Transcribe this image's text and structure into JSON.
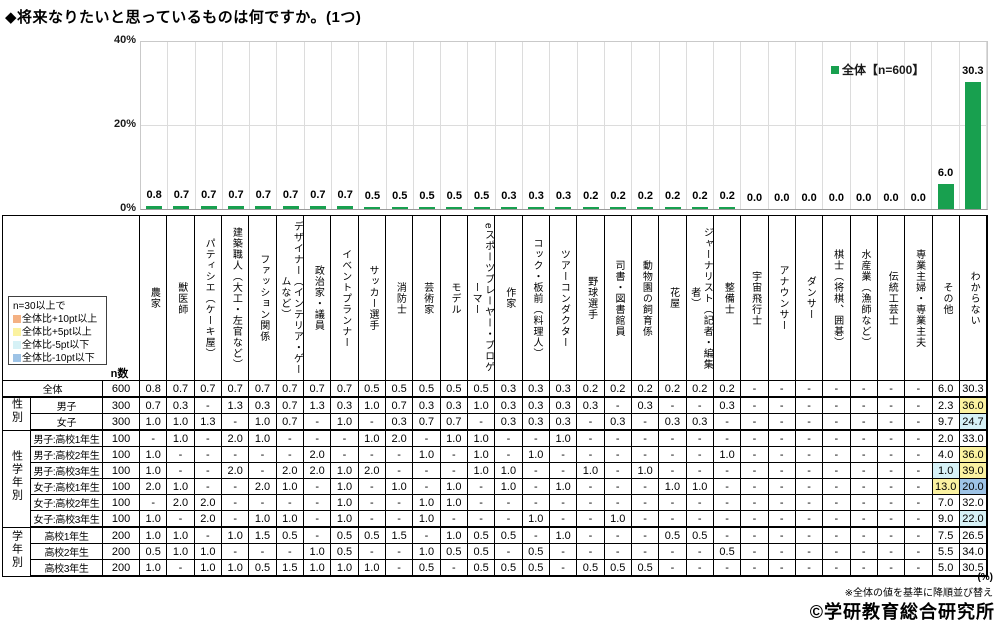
{
  "title": "◆将来なりたいと思っているものは何ですか。(1つ)",
  "chart_data": {
    "type": "bar",
    "title": "将来なりたいと思っているものは何ですか。(1つ)",
    "series_name": "全体【n=600】",
    "bar_color": "#18A04F",
    "ylim": [
      0,
      40
    ],
    "yticks": [
      "40%",
      "20%",
      "0%"
    ],
    "grid": "horizontal at 0/20/40, vertical band separators",
    "legend_position": "top-right",
    "unit": "%",
    "categories": [
      "農家",
      "獣医師",
      "パティシエ（ケーキ屋）",
      "建築職人（大工・左官など）",
      "ファッション関係",
      "デザイナー（インテリア・ゲームなど）",
      "政治家・議員",
      "イベントプランナー",
      "サッカー選手",
      "消防士",
      "芸術家",
      "モデル",
      "eスポーツプレーヤー・プロゲーマー",
      "作家",
      "コック・板前（料理人）",
      "ツアーコンダクター",
      "野球選手",
      "司書・図書館員",
      "動物園の飼育係",
      "花屋",
      "ジャーナリスト（記者・編集者）",
      "整備士",
      "宇宙飛行士",
      "アナウンサー",
      "ダンサー",
      "棋士（将棋、囲碁）",
      "水産業（漁師など）",
      "伝統工芸士",
      "専業主婦・専業主夫",
      "その他",
      "わからない"
    ],
    "values": [
      0.8,
      0.7,
      0.7,
      0.7,
      0.7,
      0.7,
      0.7,
      0.7,
      0.5,
      0.5,
      0.5,
      0.5,
      0.5,
      0.3,
      0.3,
      0.3,
      0.2,
      0.2,
      0.2,
      0.2,
      0.2,
      0.2,
      0.0,
      0.0,
      0.0,
      0.0,
      0.0,
      0.0,
      0.0,
      6.0,
      30.3
    ]
  },
  "legend": {
    "title": "n=30以上で",
    "items": [
      {
        "label": "全体比+10pt以上",
        "color": "#F4B183",
        "key": "p10"
      },
      {
        "label": "全体比+5pt以上",
        "color": "#FBF2A0",
        "key": "p5"
      },
      {
        "label": "全体比-5pt以下",
        "color": "#D6F1F6",
        "key": "m5"
      },
      {
        "label": "全体比-10pt以下",
        "color": "#9DC3E6",
        "key": "m10"
      }
    ]
  },
  "highlight_colors": {
    "p10": "#F4B183",
    "p5": "#FBF2A0",
    "m5": "#D6F1F6",
    "m10": "#9DC3E6"
  },
  "table": {
    "n_header": "n数",
    "groups": [
      {
        "label": "",
        "rows": 1
      },
      {
        "label": "性別",
        "rows": 2
      },
      {
        "label": "性学年別",
        "rows": 6
      },
      {
        "label": "学年別",
        "rows": 3
      }
    ],
    "rows": [
      {
        "label": "全体",
        "n": "600",
        "values": [
          "0.8",
          "0.7",
          "0.7",
          "0.7",
          "0.7",
          "0.7",
          "0.7",
          "0.7",
          "0.5",
          "0.5",
          "0.5",
          "0.5",
          "0.5",
          "0.3",
          "0.3",
          "0.3",
          "0.2",
          "0.2",
          "0.2",
          "0.2",
          "0.2",
          "0.2",
          "-",
          "-",
          "-",
          "-",
          "-",
          "-",
          "-",
          "6.0",
          "30.3"
        ],
        "highlights": {}
      },
      {
        "label": "男子",
        "n": "300",
        "values": [
          "0.7",
          "0.3",
          "-",
          "1.3",
          "0.3",
          "0.7",
          "1.3",
          "0.3",
          "1.0",
          "0.7",
          "0.3",
          "0.3",
          "1.0",
          "0.3",
          "0.3",
          "0.3",
          "0.3",
          "-",
          "0.3",
          "-",
          "-",
          "0.3",
          "-",
          "-",
          "-",
          "-",
          "-",
          "-",
          "-",
          "2.3",
          "36.0"
        ],
        "highlights": {
          "30": "p5"
        }
      },
      {
        "label": "女子",
        "n": "300",
        "values": [
          "1.0",
          "1.0",
          "1.3",
          "-",
          "1.0",
          "0.7",
          "-",
          "1.0",
          "-",
          "0.3",
          "0.7",
          "0.7",
          "-",
          "0.3",
          "0.3",
          "0.3",
          "-",
          "0.3",
          "-",
          "0.3",
          "0.3",
          "-",
          "-",
          "-",
          "-",
          "-",
          "-",
          "-",
          "-",
          "9.7",
          "24.7"
        ],
        "highlights": {
          "30": "m5"
        }
      },
      {
        "label": "男子:高校1年生",
        "n": "100",
        "values": [
          "-",
          "1.0",
          "-",
          "2.0",
          "1.0",
          "-",
          "-",
          "-",
          "1.0",
          "2.0",
          "-",
          "1.0",
          "1.0",
          "-",
          "-",
          "1.0",
          "-",
          "-",
          "-",
          "-",
          "-",
          "-",
          "-",
          "-",
          "-",
          "-",
          "-",
          "-",
          "-",
          "2.0",
          "33.0"
        ],
        "highlights": {}
      },
      {
        "label": "男子:高校2年生",
        "n": "100",
        "values": [
          "1.0",
          "-",
          "-",
          "-",
          "-",
          "-",
          "2.0",
          "-",
          "-",
          "-",
          "1.0",
          "-",
          "1.0",
          "-",
          "1.0",
          "-",
          "-",
          "-",
          "-",
          "-",
          "-",
          "1.0",
          "-",
          "-",
          "-",
          "-",
          "-",
          "-",
          "-",
          "4.0",
          "36.0"
        ],
        "highlights": {
          "30": "p5"
        }
      },
      {
        "label": "男子:高校3年生",
        "n": "100",
        "values": [
          "1.0",
          "-",
          "-",
          "2.0",
          "-",
          "2.0",
          "2.0",
          "1.0",
          "2.0",
          "-",
          "-",
          "-",
          "1.0",
          "1.0",
          "-",
          "-",
          "1.0",
          "-",
          "1.0",
          "-",
          "-",
          "-",
          "-",
          "-",
          "-",
          "-",
          "-",
          "-",
          "-",
          "1.0",
          "39.0"
        ],
        "highlights": {
          "29": "m5",
          "30": "p5"
        }
      },
      {
        "label": "女子:高校1年生",
        "n": "100",
        "values": [
          "2.0",
          "1.0",
          "-",
          "-",
          "2.0",
          "1.0",
          "-",
          "1.0",
          "-",
          "1.0",
          "-",
          "1.0",
          "-",
          "1.0",
          "-",
          "1.0",
          "-",
          "-",
          "-",
          "1.0",
          "1.0",
          "-",
          "-",
          "-",
          "-",
          "-",
          "-",
          "-",
          "-",
          "13.0",
          "20.0"
        ],
        "highlights": {
          "29": "p5",
          "30": "m10"
        }
      },
      {
        "label": "女子:高校2年生",
        "n": "100",
        "values": [
          "-",
          "2.0",
          "2.0",
          "-",
          "-",
          "-",
          "-",
          "1.0",
          "-",
          "-",
          "1.0",
          "1.0",
          "-",
          "-",
          "-",
          "-",
          "-",
          "-",
          "-",
          "-",
          "-",
          "-",
          "-",
          "-",
          "-",
          "-",
          "-",
          "-",
          "-",
          "7.0",
          "32.0"
        ],
        "highlights": {}
      },
      {
        "label": "女子:高校3年生",
        "n": "100",
        "values": [
          "1.0",
          "-",
          "2.0",
          "-",
          "1.0",
          "1.0",
          "-",
          "1.0",
          "-",
          "-",
          "1.0",
          "-",
          "-",
          "-",
          "1.0",
          "-",
          "-",
          "1.0",
          "-",
          "-",
          "-",
          "-",
          "-",
          "-",
          "-",
          "-",
          "-",
          "-",
          "-",
          "9.0",
          "22.0"
        ],
        "highlights": {
          "30": "m5"
        }
      },
      {
        "label": "高校1年生",
        "n": "200",
        "values": [
          "1.0",
          "1.0",
          "-",
          "1.0",
          "1.5",
          "0.5",
          "-",
          "0.5",
          "0.5",
          "1.5",
          "-",
          "1.0",
          "0.5",
          "0.5",
          "-",
          "1.0",
          "-",
          "-",
          "-",
          "0.5",
          "0.5",
          "-",
          "-",
          "-",
          "-",
          "-",
          "-",
          "-",
          "-",
          "7.5",
          "26.5"
        ],
        "highlights": {}
      },
      {
        "label": "高校2年生",
        "n": "200",
        "values": [
          "0.5",
          "1.0",
          "1.0",
          "-",
          "-",
          "-",
          "1.0",
          "0.5",
          "-",
          "-",
          "1.0",
          "0.5",
          "0.5",
          "-",
          "0.5",
          "-",
          "-",
          "-",
          "-",
          "-",
          "-",
          "0.5",
          "-",
          "-",
          "-",
          "-",
          "-",
          "-",
          "-",
          "5.5",
          "34.0"
        ],
        "highlights": {}
      },
      {
        "label": "高校3年生",
        "n": "200",
        "values": [
          "1.0",
          "-",
          "1.0",
          "1.0",
          "0.5",
          "1.5",
          "1.0",
          "1.0",
          "1.0",
          "-",
          "0.5",
          "-",
          "0.5",
          "0.5",
          "0.5",
          "-",
          "0.5",
          "0.5",
          "0.5",
          "-",
          "-",
          "-",
          "-",
          "-",
          "-",
          "-",
          "-",
          "-",
          "-",
          "5.0",
          "30.5"
        ],
        "highlights": {}
      }
    ]
  },
  "footer": {
    "percent_note": "(%)",
    "sort_note": "※全体の値を基準に降順並び替え",
    "copyright": "©学研教育総合研究所"
  }
}
